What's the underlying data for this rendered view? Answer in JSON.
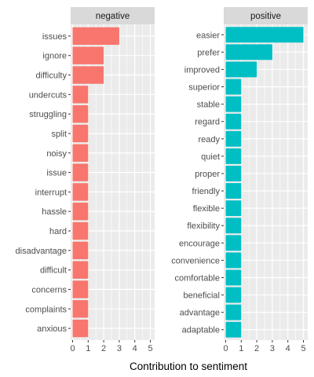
{
  "chart_data": {
    "type": "bar",
    "orientation": "horizontal",
    "xlabel": "Contribution to sentiment",
    "xlim": [
      0,
      5
    ],
    "xticks": [
      0,
      1,
      2,
      3,
      4,
      5
    ],
    "grid": true,
    "panels": [
      {
        "name": "negative",
        "color": "#F8766D",
        "categories": [
          "issues",
          "ignore",
          "difficulty",
          "undercuts",
          "struggling",
          "split",
          "noisy",
          "issue",
          "interrupt",
          "hassle",
          "hard",
          "disadvantage",
          "difficult",
          "concerns",
          "complaints",
          "anxious"
        ],
        "values": [
          3,
          2,
          2,
          1,
          1,
          1,
          1,
          1,
          1,
          1,
          1,
          1,
          1,
          1,
          1,
          1
        ]
      },
      {
        "name": "positive",
        "color": "#00BFC4",
        "categories": [
          "easier",
          "prefer",
          "improved",
          "superior",
          "stable",
          "regard",
          "ready",
          "quiet",
          "proper",
          "friendly",
          "flexible",
          "flexibility",
          "encourage",
          "convenience",
          "comfortable",
          "beneficial",
          "advantage",
          "adaptable"
        ],
        "values": [
          5,
          3,
          2,
          1,
          1,
          1,
          1,
          1,
          1,
          1,
          1,
          1,
          1,
          1,
          1,
          1,
          1,
          1
        ]
      }
    ]
  },
  "colors": {
    "panel_background": "#EBEBEB",
    "strip_background": "#D9D9D9",
    "grid": "#FFFFFF"
  }
}
